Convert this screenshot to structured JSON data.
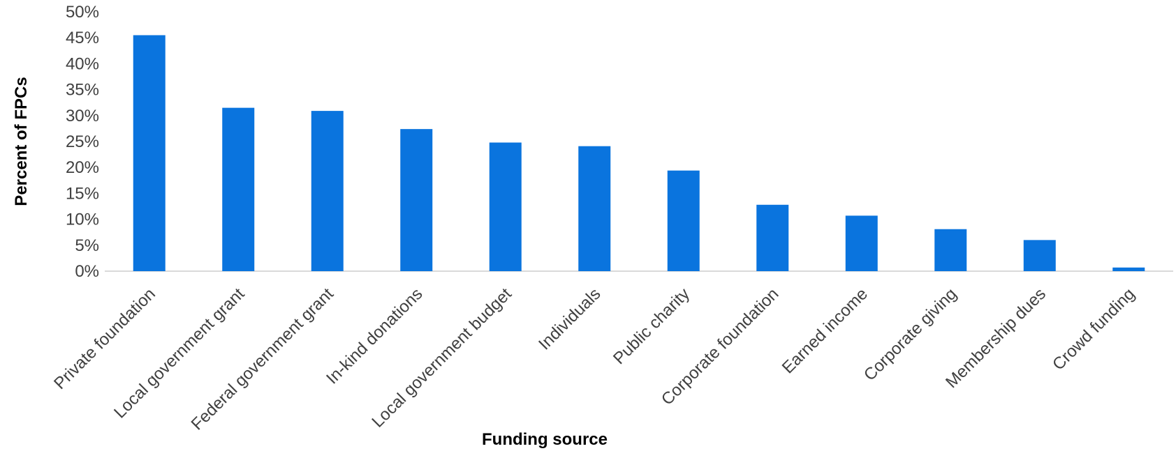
{
  "chart_data": {
    "type": "bar",
    "title": "",
    "xlabel": "Funding source",
    "ylabel": "Percent of FPCs",
    "ylim": [
      0,
      50
    ],
    "yticks": [
      0,
      5,
      10,
      15,
      20,
      25,
      30,
      35,
      40,
      45,
      50
    ],
    "ytick_labels": [
      "0%",
      "5%",
      "10%",
      "15%",
      "20%",
      "25%",
      "30%",
      "35%",
      "40%",
      "45%",
      "50%"
    ],
    "grid": false,
    "legend": "none",
    "bar_color": "#0a74de",
    "categories": [
      "Private foundation",
      "Local government grant",
      "Federal government grant",
      "In-kind donations",
      "Local government budget",
      "Individuals",
      "Public charity",
      "Corporate foundation",
      "Earned income",
      "Corporate giving",
      "Membership dues",
      "Crowd funding"
    ],
    "values": [
      45.5,
      31.5,
      30.9,
      27.4,
      24.8,
      24.1,
      19.4,
      12.8,
      10.7,
      8.1,
      6.0,
      0.7
    ]
  }
}
